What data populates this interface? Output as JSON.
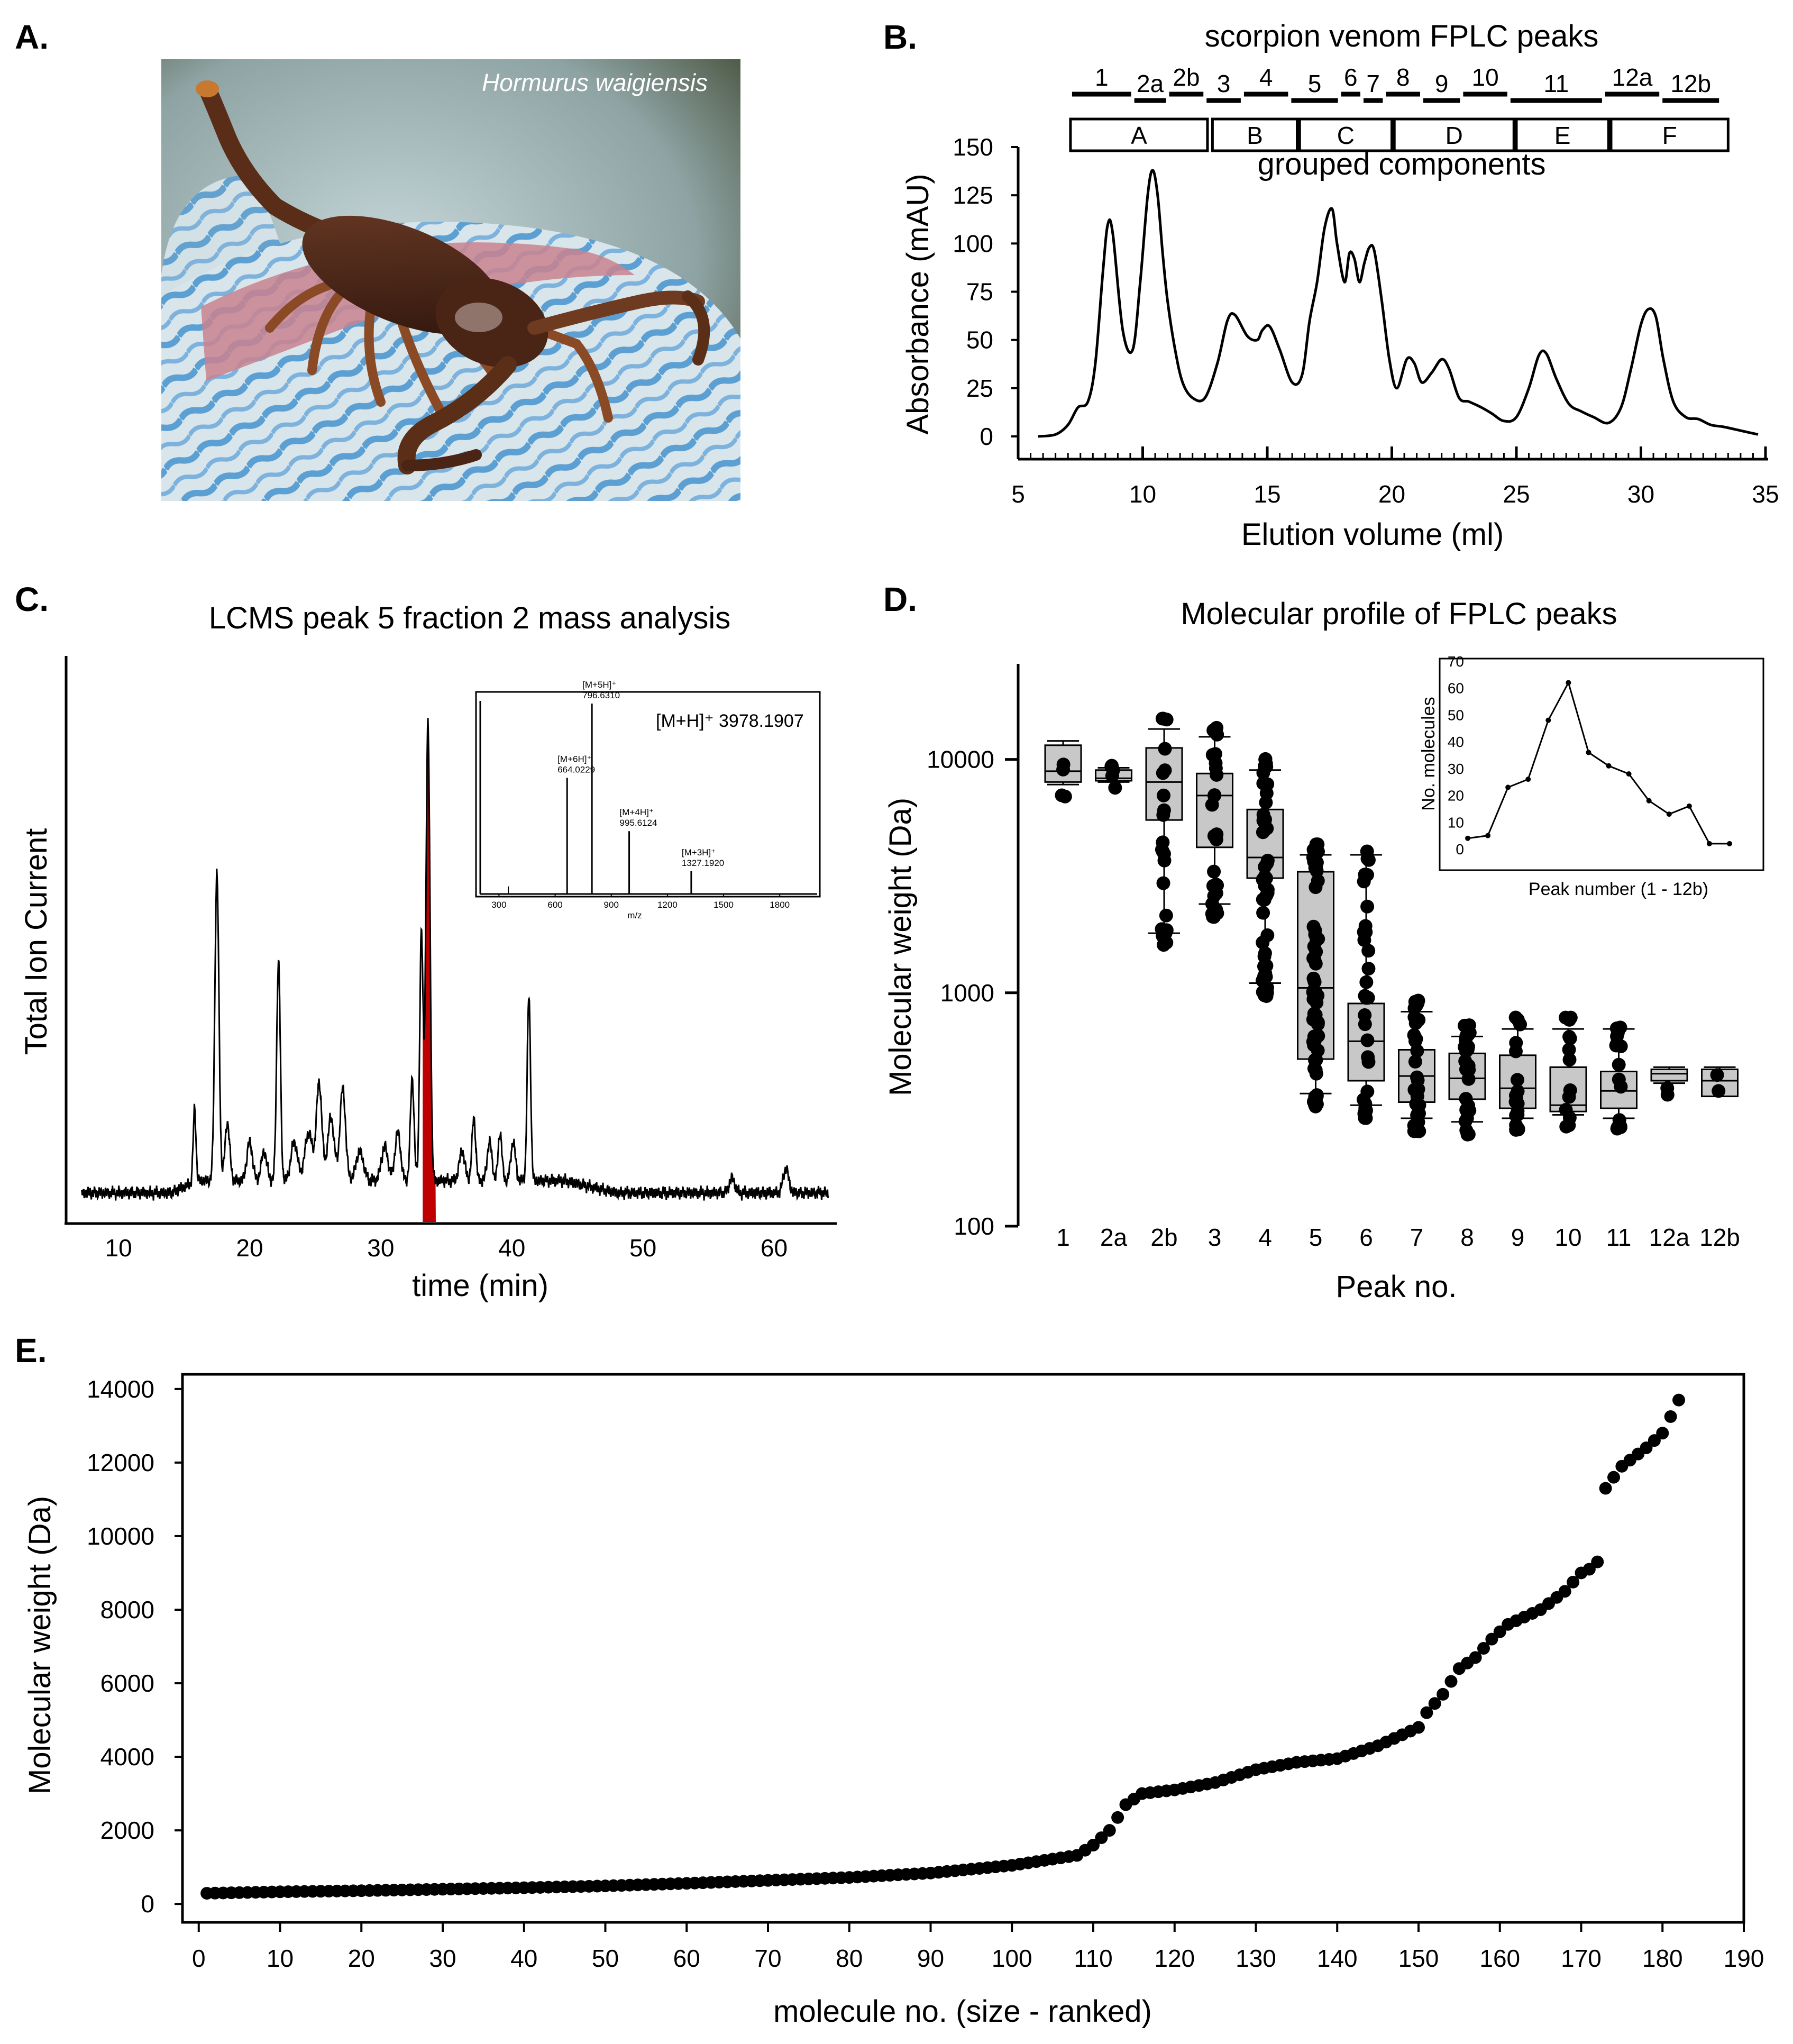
{
  "figure": {
    "panel_letters": [
      "A.",
      "B.",
      "C.",
      "D.",
      "E."
    ]
  },
  "panel_a": {
    "species_label": "Hormurus waigiensis"
  },
  "chart_data": [
    {
      "panel": "B",
      "type": "line",
      "title": "scorpion venom FPLC peaks",
      "xlabel": "Elution volume  (ml)",
      "ylabel": "Absorbance (mAU)",
      "xlim": [
        5,
        35
      ],
      "ylim": [
        0,
        150
      ],
      "x_ticks": [
        "5",
        "10",
        "15",
        "20",
        "25",
        "30",
        "35"
      ],
      "y_ticks": [
        "0",
        "25",
        "50",
        "75",
        "100",
        "125",
        "150"
      ],
      "peak_labels": [
        {
          "label": "1",
          "x0": 7.1,
          "x1": 9.6
        },
        {
          "label": "2a",
          "x0": 9.6,
          "x1": 11.0
        },
        {
          "label": "2b",
          "x0": 11.0,
          "x1": 12.5
        },
        {
          "label": "3",
          "x0": 12.5,
          "x1": 14.0
        },
        {
          "label": "4",
          "x0": 14.0,
          "x1": 15.9
        },
        {
          "label": "5",
          "x0": 15.9,
          "x1": 17.9
        },
        {
          "label": "6",
          "x0": 17.9,
          "x1": 18.8
        },
        {
          "label": "7",
          "x0": 18.8,
          "x1": 19.7
        },
        {
          "label": "8",
          "x0": 19.7,
          "x1": 21.2
        },
        {
          "label": "9",
          "x0": 21.2,
          "x1": 22.8
        },
        {
          "label": "10",
          "x0": 22.8,
          "x1": 24.7
        },
        {
          "label": "11",
          "x0": 24.7,
          "x1": 28.5
        },
        {
          "label": "12a",
          "x0": 28.5,
          "x1": 30.8
        },
        {
          "label": "12b",
          "x0": 30.8,
          "x1": 33.2
        }
      ],
      "groups_caption": "grouped components",
      "groups": [
        {
          "label": "A",
          "x0": 7.1,
          "x1": 12.6
        },
        {
          "label": "B",
          "x0": 12.8,
          "x1": 16.2
        },
        {
          "label": "C",
          "x0": 16.3,
          "x1": 20.0
        },
        {
          "label": "D",
          "x0": 20.1,
          "x1": 24.9
        },
        {
          "label": "E",
          "x0": 25.0,
          "x1": 28.7
        },
        {
          "label": "F",
          "x0": 28.8,
          "x1": 33.5
        }
      ],
      "x": [
        5.8,
        6.5,
        7.0,
        7.4,
        7.8,
        8.1,
        8.4,
        8.6,
        8.8,
        9.2,
        9.6,
        9.9,
        10.2,
        10.4,
        10.6,
        10.8,
        11.0,
        11.3,
        11.6,
        12.0,
        12.5,
        13.0,
        13.4,
        13.7,
        14.2,
        14.6,
        14.8,
        15.1,
        15.5,
        16.0,
        16.4,
        16.7,
        17.0,
        17.3,
        17.6,
        17.8,
        18.1,
        18.3,
        18.5,
        18.7,
        18.9,
        19.1,
        19.3,
        19.6,
        19.9,
        20.2,
        20.6,
        20.9,
        21.2,
        21.6,
        22.0,
        22.3,
        22.7,
        23.1,
        23.6,
        24.0,
        24.5,
        25.0,
        25.5,
        25.9,
        26.2,
        26.6,
        27.1,
        27.6,
        28.1,
        28.7,
        29.2,
        29.6,
        30.0,
        30.3,
        30.6,
        30.9,
        31.3,
        31.8,
        32.3,
        32.8,
        33.3,
        34.0,
        34.7
      ],
      "y": [
        0,
        1,
        6,
        15,
        18,
        38,
        85,
        110,
        105,
        55,
        45,
        80,
        125,
        138,
        125,
        95,
        70,
        45,
        28,
        20,
        20,
        38,
        60,
        63,
        52,
        50,
        55,
        57,
        45,
        28,
        32,
        60,
        80,
        108,
        118,
        100,
        80,
        95,
        92,
        80,
        90,
        98,
        96,
        70,
        40,
        25,
        40,
        38,
        28,
        33,
        40,
        35,
        20,
        18,
        15,
        12,
        8,
        10,
        25,
        42,
        43,
        30,
        17,
        13,
        10,
        7,
        15,
        35,
        58,
        66,
        62,
        40,
        18,
        10,
        9,
        6,
        5,
        3,
        1
      ]
    },
    {
      "panel": "C",
      "type": "line",
      "title": "LCMS peak 5 fraction 2 mass analysis",
      "xlabel": "time (min)",
      "ylabel": "Total Ion Current",
      "xlim": [
        6,
        64.5
      ],
      "ylim": [
        0,
        100
      ],
      "x_ticks": [
        "10",
        "20",
        "30",
        "40",
        "50",
        "60"
      ],
      "highlight_range": [
        33.2,
        34.2
      ],
      "peaks": [
        {
          "x": 15.8,
          "h": 15,
          "w": 0.15
        },
        {
          "x": 17.5,
          "h": 63,
          "w": 0.22
        },
        {
          "x": 18.3,
          "h": 12,
          "w": 0.25
        },
        {
          "x": 20.0,
          "h": 8,
          "w": 0.3
        },
        {
          "x": 21.1,
          "h": 6,
          "w": 0.3
        },
        {
          "x": 22.2,
          "h": 45,
          "w": 0.2
        },
        {
          "x": 23.4,
          "h": 8,
          "w": 0.35
        },
        {
          "x": 24.5,
          "h": 10,
          "w": 0.4
        },
        {
          "x": 25.3,
          "h": 20,
          "w": 0.3
        },
        {
          "x": 26.2,
          "h": 13,
          "w": 0.35
        },
        {
          "x": 27.1,
          "h": 19,
          "w": 0.3
        },
        {
          "x": 28.4,
          "h": 6,
          "w": 0.4
        },
        {
          "x": 30.3,
          "h": 7,
          "w": 0.35
        },
        {
          "x": 31.3,
          "h": 10,
          "w": 0.3
        },
        {
          "x": 32.4,
          "h": 21,
          "w": 0.2
        },
        {
          "x": 33.1,
          "h": 51,
          "w": 0.18
        },
        {
          "x": 33.6,
          "h": 94,
          "w": 0.22
        },
        {
          "x": 36.2,
          "h": 6,
          "w": 0.3
        },
        {
          "x": 37.1,
          "h": 13,
          "w": 0.2
        },
        {
          "x": 38.3,
          "h": 8,
          "w": 0.25
        },
        {
          "x": 39.1,
          "h": 10,
          "w": 0.2
        },
        {
          "x": 40.1,
          "h": 8,
          "w": 0.25
        },
        {
          "x": 41.3,
          "h": 38,
          "w": 0.18
        },
        {
          "x": 56.8,
          "h": 3,
          "w": 0.3
        },
        {
          "x": 60.9,
          "h": 5,
          "w": 0.3
        }
      ],
      "inset": {
        "type": "bar",
        "xlabel": "m/z",
        "annotation": "[M+H]⁺  3978.1907",
        "x_ticks": [
          "300",
          "600",
          "900",
          "1200",
          "1500",
          "1800"
        ],
        "xlim": [
          200,
          2000
        ],
        "bars": [
          {
            "mz": 664.0229,
            "rel": 61,
            "label": "[M+6H]⁺",
            "value": "664.0229"
          },
          {
            "mz": 796.631,
            "rel": 100,
            "label": "[M+5H]⁺",
            "value": "796.6310"
          },
          {
            "mz": 995.6124,
            "rel": 33,
            "label": "[M+4H]⁺",
            "value": "995.6124"
          },
          {
            "mz": 1327.192,
            "rel": 12,
            "label": "[M+3H]⁺",
            "value": "1327.1920"
          }
        ]
      }
    },
    {
      "panel": "D",
      "type": "box",
      "title": "Molecular profile of FPLC peaks",
      "xlabel": "Peak no.",
      "ylabel": "Molecular weight (Da)",
      "y_scale": "log",
      "ylim": [
        100,
        25000
      ],
      "y_ticks": [
        "100",
        "1000",
        "10000"
      ],
      "categories": [
        "1",
        "2a",
        "2b",
        "3",
        "4",
        "5",
        "6",
        "7",
        "8",
        "9",
        "10",
        "11",
        "12a",
        "12b"
      ],
      "boxes": [
        {
          "min": 7800,
          "q1": 8000,
          "median": 8900,
          "q3": 11500,
          "max": 12000
        },
        {
          "min": 8000,
          "q1": 8100,
          "median": 8300,
          "q3": 9000,
          "max": 9200
        },
        {
          "min": 1800,
          "q1": 5500,
          "median": 8000,
          "q3": 11200,
          "max": 13500
        },
        {
          "min": 2400,
          "q1": 4200,
          "median": 7000,
          "q3": 8700,
          "max": 12500
        },
        {
          "min": 1100,
          "q1": 3100,
          "median": 3800,
          "q3": 6100,
          "max": 9000
        },
        {
          "min": 370,
          "q1": 520,
          "median": 1050,
          "q3": 3300,
          "max": 3900
        },
        {
          "min": 330,
          "q1": 420,
          "median": 620,
          "q3": 900,
          "max": 3900
        },
        {
          "min": 290,
          "q1": 340,
          "median": 440,
          "q3": 570,
          "max": 830
        },
        {
          "min": 280,
          "q1": 350,
          "median": 430,
          "q3": 550,
          "max": 650
        },
        {
          "min": 290,
          "q1": 320,
          "median": 390,
          "q3": 540,
          "max": 700
        },
        {
          "min": 300,
          "q1": 310,
          "median": 330,
          "q3": 480,
          "max": 700
        },
        {
          "min": 290,
          "q1": 320,
          "median": 380,
          "q3": 460,
          "max": 700
        },
        {
          "min": 410,
          "q1": 420,
          "median": 450,
          "q3": 470,
          "max": 480
        },
        {
          "min": 360,
          "q1": 360,
          "median": 420,
          "q3": 470,
          "max": 480
        }
      ],
      "inset": {
        "type": "line",
        "xlabel": "Peak number (1 - 12b)",
        "ylabel": "No. molecules",
        "ylim": [
          0,
          70
        ],
        "y_ticks": [
          "0",
          "10",
          "20",
          "30",
          "40",
          "50",
          "60",
          "70"
        ],
        "values": [
          4,
          5,
          23,
          26,
          48,
          62,
          36,
          31,
          28,
          18,
          13,
          16,
          2,
          2
        ]
      }
    },
    {
      "panel": "E",
      "type": "scatter",
      "xlabel": "molecule no. (size - ranked)",
      "ylabel": "Molecular weight (Da)",
      "xlim": [
        -2,
        190
      ],
      "ylim": [
        -500,
        14400
      ],
      "x_ticks": [
        "0",
        "10",
        "20",
        "30",
        "40",
        "50",
        "60",
        "70",
        "80",
        "90",
        "100",
        "110",
        "120",
        "130",
        "140",
        "150",
        "160",
        "170",
        "180",
        "190"
      ],
      "y_ticks": [
        "0",
        "2000",
        "4000",
        "6000",
        "8000",
        "10000",
        "12000",
        "14000"
      ],
      "n_points": 182,
      "curve_anchors": {
        "rank": [
          1,
          10,
          20,
          30,
          40,
          50,
          60,
          70,
          80,
          90,
          100,
          108,
          110,
          112,
          114,
          116,
          120,
          125,
          130,
          135,
          140,
          145,
          150,
          151,
          153,
          155,
          157,
          159,
          161,
          165,
          168,
          170,
          171,
          172,
          173,
          175,
          178,
          180,
          182
        ],
        "weight": [
          290,
          330,
          360,
          400,
          440,
          490,
          560,
          640,
          720,
          840,
          1050,
          1320,
          1600,
          2000,
          2700,
          3000,
          3100,
          3300,
          3650,
          3850,
          3950,
          4300,
          4800,
          5200,
          5700,
          6400,
          6700,
          7200,
          7600,
          8000,
          8500,
          9000,
          9100,
          9300,
          11300,
          11900,
          12400,
          12800,
          13700
        ]
      }
    }
  ]
}
